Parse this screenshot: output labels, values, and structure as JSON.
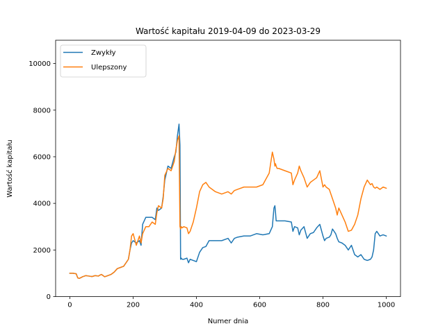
{
  "chart_data": {
    "type": "line",
    "title": "Wartość kapitału 2019-04-09 do 2023-03-29",
    "xlabel": "Numer dnia",
    "ylabel": "Wartość kapitału",
    "xlim": [
      -45,
      1045
    ],
    "ylim": [
      0,
      11000
    ],
    "xticks": [
      0,
      200,
      400,
      600,
      800,
      1000
    ],
    "yticks": [
      0,
      2000,
      4000,
      6000,
      8000,
      10000
    ],
    "grid": false,
    "legend_position": "top-left",
    "series": [
      {
        "name": "Zwykły",
        "color": "#1f77b4",
        "x": [
          0,
          10,
          20,
          25,
          30,
          40,
          50,
          60,
          70,
          80,
          90,
          95,
          100,
          110,
          120,
          130,
          140,
          150,
          160,
          170,
          180,
          185,
          190,
          195,
          200,
          210,
          220,
          225,
          230,
          240,
          250,
          260,
          270,
          275,
          280,
          290,
          295,
          300,
          310,
          320,
          330,
          335,
          340,
          345,
          348,
          350,
          352,
          355,
          360,
          370,
          375,
          380,
          390,
          400,
          410,
          420,
          430,
          440,
          450,
          460,
          480,
          500,
          510,
          520,
          530,
          550,
          570,
          590,
          610,
          630,
          640,
          645,
          648,
          650,
          652,
          655,
          660,
          680,
          700,
          705,
          710,
          720,
          725,
          730,
          740,
          750,
          760,
          770,
          780,
          790,
          800,
          805,
          810,
          820,
          825,
          830,
          840,
          845,
          850,
          860,
          870,
          880,
          890,
          900,
          910,
          920,
          930,
          940,
          950,
          955,
          960,
          965,
          970,
          980,
          990,
          1000
        ],
        "values": [
          1000,
          1000,
          980,
          800,
          780,
          850,
          900,
          880,
          860,
          900,
          880,
          920,
          950,
          850,
          900,
          950,
          1050,
          1200,
          1250,
          1300,
          1500,
          1600,
          2000,
          2300,
          2400,
          2300,
          2400,
          2200,
          3100,
          3400,
          3400,
          3400,
          3300,
          3800,
          3700,
          3800,
          4300,
          5000,
          5600,
          5500,
          6000,
          6200,
          6900,
          7400,
          6500,
          1600,
          1650,
          1600,
          1600,
          1650,
          1450,
          1600,
          1550,
          1500,
          1900,
          2100,
          2150,
          2400,
          2400,
          2400,
          2400,
          2500,
          2300,
          2500,
          2550,
          2600,
          2600,
          2700,
          2650,
          2700,
          3000,
          3800,
          3900,
          3600,
          3250,
          3250,
          3250,
          3250,
          3200,
          2800,
          3000,
          2950,
          2650,
          2850,
          3000,
          2500,
          2700,
          2750,
          2950,
          3100,
          2600,
          2400,
          2500,
          2550,
          2650,
          2900,
          2700,
          2500,
          2350,
          2300,
          2200,
          2000,
          2200,
          1800,
          1700,
          1800,
          1600,
          1550,
          1600,
          1700,
          2000,
          2700,
          2800,
          2600,
          2650,
          2600
        ]
      },
      {
        "name": "Ulepszony",
        "color": "#ff7f0e",
        "x": [
          0,
          10,
          20,
          25,
          30,
          40,
          50,
          60,
          70,
          80,
          90,
          95,
          100,
          110,
          120,
          130,
          140,
          150,
          160,
          170,
          180,
          185,
          190,
          195,
          200,
          210,
          220,
          225,
          230,
          240,
          250,
          260,
          270,
          275,
          280,
          290,
          295,
          300,
          310,
          320,
          330,
          335,
          340,
          345,
          348,
          350,
          352,
          355,
          360,
          370,
          375,
          380,
          390,
          400,
          410,
          420,
          430,
          440,
          450,
          460,
          480,
          500,
          510,
          520,
          530,
          550,
          570,
          590,
          610,
          630,
          640,
          645,
          648,
          650,
          652,
          655,
          660,
          680,
          700,
          705,
          710,
          720,
          725,
          730,
          740,
          750,
          760,
          770,
          780,
          790,
          800,
          805,
          810,
          820,
          825,
          830,
          840,
          845,
          850,
          860,
          870,
          880,
          890,
          900,
          910,
          920,
          930,
          940,
          950,
          955,
          960,
          965,
          970,
          980,
          990,
          1000
        ],
        "values": [
          1000,
          1000,
          980,
          800,
          780,
          850,
          900,
          880,
          860,
          900,
          880,
          920,
          950,
          850,
          900,
          950,
          1050,
          1200,
          1250,
          1300,
          1500,
          1600,
          2000,
          2600,
          2700,
          2200,
          2600,
          2300,
          2700,
          3000,
          3000,
          3200,
          3100,
          3600,
          3900,
          3800,
          4200,
          5200,
          5500,
          5400,
          5800,
          6300,
          6700,
          6900,
          3000,
          2900,
          3000,
          2950,
          3000,
          2950,
          2700,
          2800,
          3200,
          3800,
          4500,
          4800,
          4900,
          4700,
          4600,
          4500,
          4400,
          4500,
          4400,
          4550,
          4600,
          4700,
          4700,
          4700,
          4800,
          5300,
          6200,
          5900,
          5600,
          5700,
          5600,
          5500,
          5500,
          5400,
          5300,
          4800,
          5000,
          5300,
          5600,
          5400,
          5100,
          4700,
          4900,
          5000,
          5100,
          5400,
          4700,
          4800,
          4700,
          4600,
          4400,
          4200,
          3800,
          3500,
          3800,
          3500,
          3200,
          2800,
          2850,
          3100,
          3500,
          4200,
          4700,
          5000,
          4800,
          4850,
          4700,
          4650,
          4700,
          4600,
          4700,
          4650
        ]
      }
    ]
  }
}
